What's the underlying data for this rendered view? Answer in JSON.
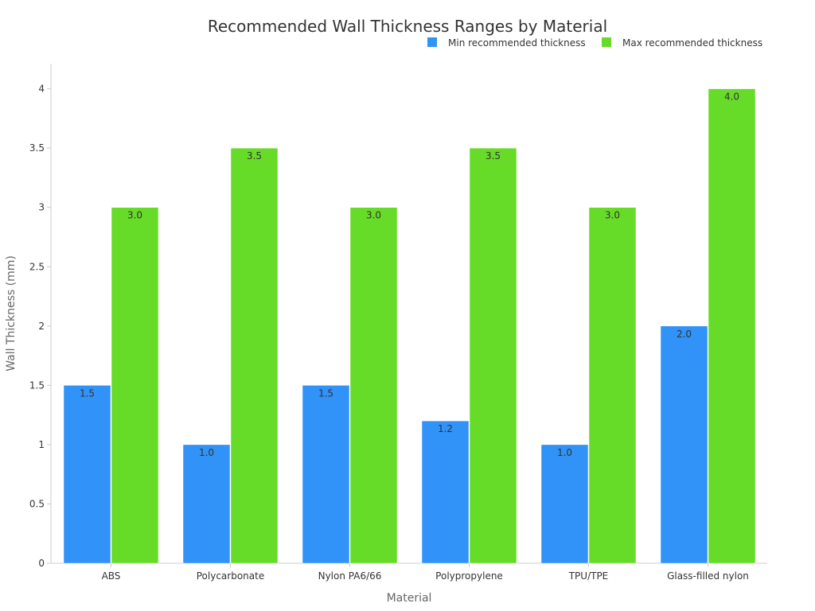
{
  "chart_data": {
    "type": "bar",
    "title": "Recommended Wall Thickness Ranges by Material",
    "xlabel": "Material",
    "ylabel": "Wall Thickness (mm)",
    "categories": [
      "ABS",
      "Polycarbonate",
      "Nylon PA6/66",
      "Polypropylene",
      "TPU/TPE",
      "Glass-filled nylon"
    ],
    "series": [
      {
        "name": "Min recommended thickness",
        "color": "#3192f7",
        "values": [
          1.5,
          1.0,
          1.5,
          1.2,
          1.0,
          2.0
        ],
        "labels": [
          "1.5",
          "1.0",
          "1.5",
          "1.2",
          "1.0",
          "2.0"
        ]
      },
      {
        "name": "Max recommended thickness",
        "color": "#66db28",
        "values": [
          3.0,
          3.5,
          3.0,
          3.5,
          3.0,
          4.0
        ],
        "labels": [
          "3.0",
          "3.5",
          "3.0",
          "3.5",
          "3.0",
          "4.0"
        ]
      }
    ],
    "ylim": [
      0,
      4.2
    ],
    "yticks": [
      0,
      0.5,
      1,
      1.5,
      2,
      2.5,
      3,
      3.5,
      4
    ],
    "ytick_labels": [
      "0",
      "0.5",
      "1",
      "1.5",
      "2",
      "2.5",
      "3",
      "3.5",
      "4"
    ],
    "legend_position": "top-right",
    "grid": false
  }
}
